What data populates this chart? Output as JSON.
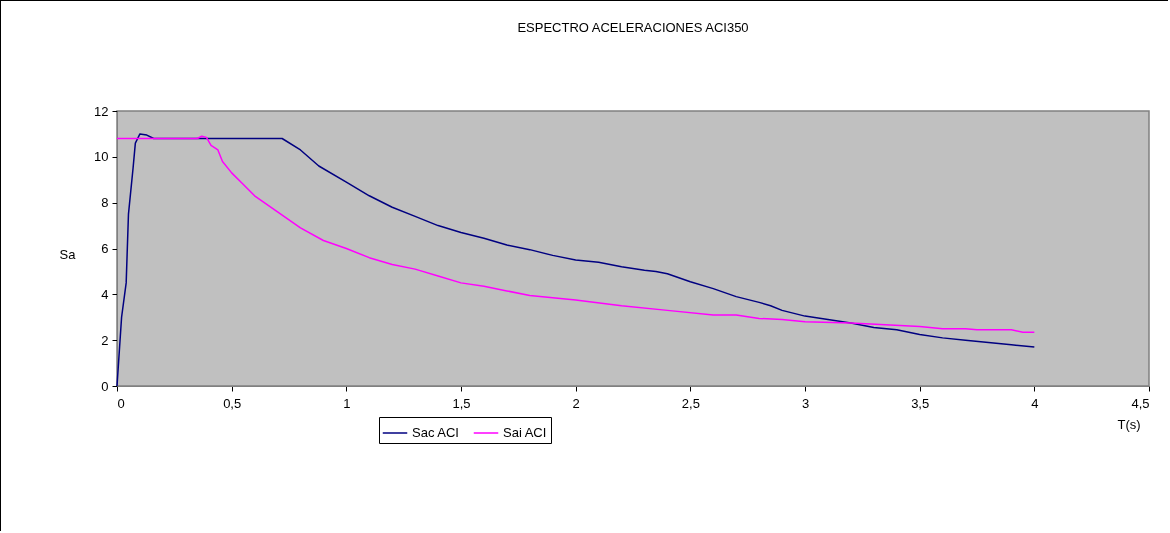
{
  "chart_data": {
    "type": "line",
    "title": "ESPECTRO ACELERACIONES ACI350",
    "xlabel": "T(s)",
    "ylabel": "Sa",
    "x": [
      0,
      0.02,
      0.04,
      0.05,
      0.07,
      0.08,
      0.1,
      0.13,
      0.16,
      0.72,
      0.8,
      0.88,
      1.0,
      1.1,
      1.2,
      1.3,
      1.4,
      1.5,
      1.6,
      1.7,
      1.8,
      1.9,
      2.0,
      2.1,
      2.2,
      2.3,
      2.35,
      2.4,
      2.5,
      2.6,
      2.7,
      2.8,
      2.85,
      2.9,
      3.0,
      3.1,
      3.2,
      3.3,
      3.4,
      3.5,
      3.6,
      3.7,
      3.8,
      3.9,
      4.0
    ],
    "series": [
      {
        "name": "Sac ACI",
        "color": "#000080",
        "values": [
          0,
          3,
          4.5,
          7.5,
          9.5,
          10.6,
          11.0,
          10.95,
          10.8,
          10.8,
          10.3,
          9.6,
          8.9,
          8.3,
          7.8,
          7.4,
          7.0,
          6.7,
          6.45,
          6.15,
          5.95,
          5.7,
          5.5,
          5.4,
          5.2,
          5.05,
          5.0,
          4.9,
          4.55,
          4.25,
          3.9,
          3.65,
          3.5,
          3.3,
          3.05,
          2.9,
          2.75,
          2.55,
          2.45,
          2.25,
          2.1,
          2.0,
          1.9,
          1.8,
          1.7
        ]
      },
      {
        "name": "Sai ACI",
        "color": "#ff00ff",
        "x": [
          0,
          0.35,
          0.37,
          0.39,
          0.41,
          0.44,
          0.46,
          0.5,
          0.55,
          0.6,
          0.7,
          0.8,
          0.9,
          1.0,
          1.1,
          1.2,
          1.3,
          1.4,
          1.5,
          1.6,
          1.7,
          1.8,
          1.9,
          2.0,
          2.2,
          2.4,
          2.6,
          2.7,
          2.8,
          2.9,
          3.0,
          3.2,
          3.5,
          3.6,
          3.7,
          3.75,
          3.9,
          3.95,
          4.0
        ],
        "values": [
          10.8,
          10.8,
          10.9,
          10.85,
          10.5,
          10.3,
          9.8,
          9.3,
          8.8,
          8.3,
          7.6,
          6.9,
          6.35,
          6.0,
          5.6,
          5.3,
          5.1,
          4.8,
          4.5,
          4.35,
          4.15,
          3.95,
          3.85,
          3.75,
          3.5,
          3.3,
          3.1,
          3.1,
          2.95,
          2.9,
          2.8,
          2.75,
          2.6,
          2.5,
          2.5,
          2.45,
          2.45,
          2.35,
          2.35
        ]
      }
    ],
    "xlim": [
      0,
      4.5
    ],
    "xticks": [
      0,
      {
        "value": 0.5,
        "label": "0,5"
      },
      1,
      {
        "value": 1.5,
        "label": "1,5"
      },
      2,
      {
        "value": 2.5,
        "label": "2,5"
      },
      3,
      {
        "value": 3.5,
        "label": "3,5"
      },
      4,
      {
        "value": 4.5,
        "label": "4,5"
      }
    ],
    "ylim": [
      0,
      12
    ],
    "yticks": [
      0,
      2,
      4,
      6,
      8,
      10,
      12
    ],
    "grid": false,
    "legend": "bottom",
    "marker": "none",
    "line_style": "solid"
  }
}
